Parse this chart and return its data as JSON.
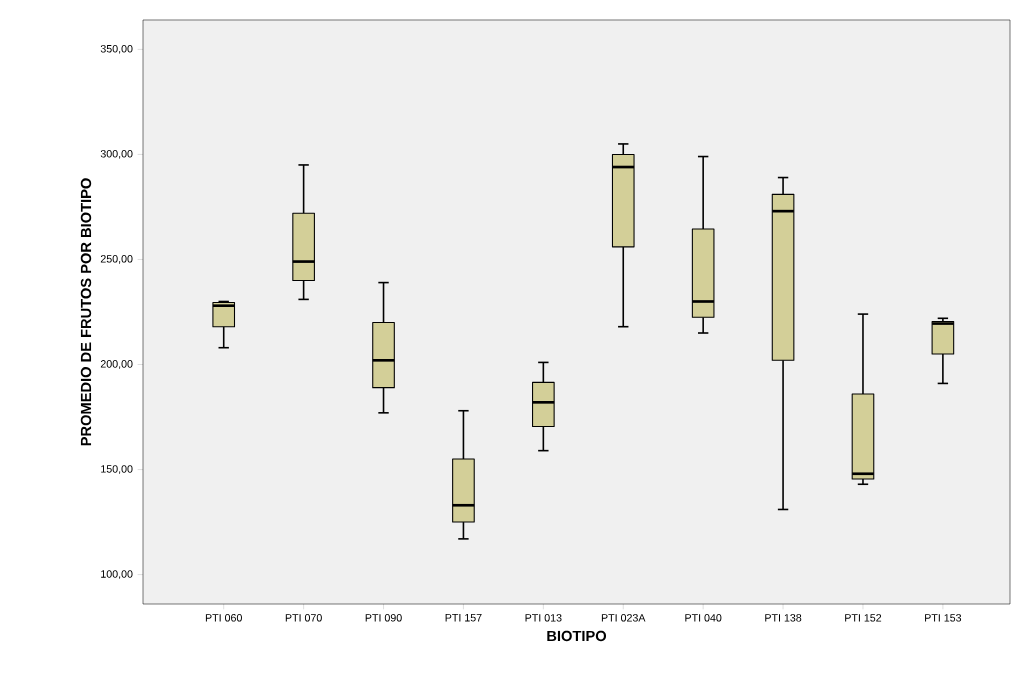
{
  "chart_data": {
    "type": "box",
    "xlabel": "BIOTIPO",
    "ylabel": "PROMEDIO DE FRUTOS POR BIOTIPO",
    "categories": [
      "PTI 060",
      "PTI 070",
      "PTI 090",
      "PTI 157",
      "PTI 013",
      "PTI 023A",
      "PTI 040",
      "PTI 138",
      "PTI 152",
      "PTI 153"
    ],
    "color": "#d3cf98",
    "boxes": [
      {
        "low": 208,
        "q1": 218,
        "median": 228,
        "q3": 229.5,
        "high": 230
      },
      {
        "low": 231,
        "q1": 240,
        "median": 249,
        "q3": 272,
        "high": 295
      },
      {
        "low": 177,
        "q1": 189,
        "median": 202,
        "q3": 220,
        "high": 239
      },
      {
        "low": 117,
        "q1": 125,
        "median": 133,
        "q3": 155,
        "high": 178
      },
      {
        "low": 159,
        "q1": 170.5,
        "median": 182,
        "q3": 191.5,
        "high": 201
      },
      {
        "low": 218,
        "q1": 256,
        "median": 294,
        "q3": 300,
        "high": 305
      },
      {
        "low": 215,
        "q1": 222.5,
        "median": 230,
        "q3": 264.5,
        "high": 299
      },
      {
        "low": 131,
        "q1": 202,
        "median": 273,
        "q3": 281,
        "high": 289
      },
      {
        "low": 143,
        "q1": 145.5,
        "median": 148,
        "q3": 186,
        "high": 224
      },
      {
        "low": 191,
        "q1": 205,
        "median": 219.5,
        "q3": 220.5,
        "high": 222
      }
    ],
    "ylim": [
      86,
      364
    ],
    "yticks": [
      {
        "value": 100,
        "label": "100,00"
      },
      {
        "value": 150,
        "label": "150,00"
      },
      {
        "value": 200,
        "label": "200,00"
      },
      {
        "value": 250,
        "label": "250,00"
      },
      {
        "value": 300,
        "label": "300,00"
      },
      {
        "value": 350,
        "label": "350,00"
      }
    ]
  }
}
